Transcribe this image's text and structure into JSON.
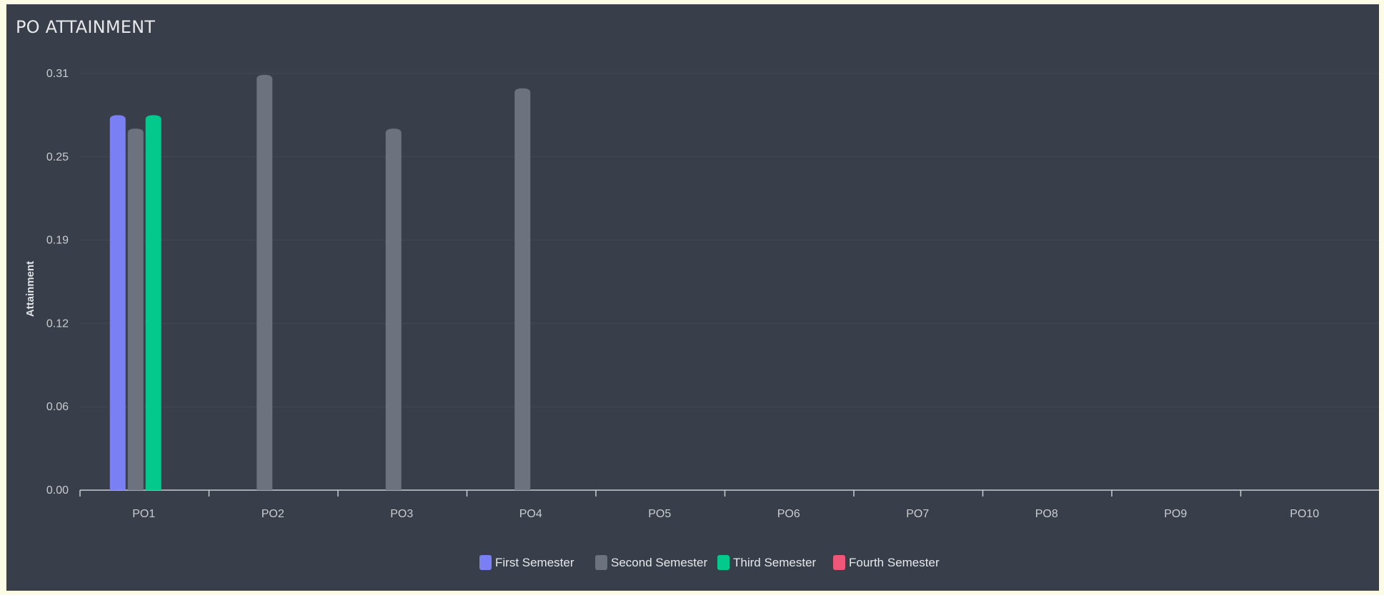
{
  "title": "PO ATTAINMENT",
  "colors": {
    "background": "#383f4a",
    "grid": "#414854",
    "axis": "#c9ccd1",
    "first": "#7a80f4",
    "second": "#6c727e",
    "third": "#03c98d",
    "fourth": "#f0567a"
  },
  "chart_data": {
    "type": "bar",
    "title": "PO ATTAINMENT",
    "xlabel": "",
    "ylabel": "Attainment",
    "ylim": [
      0,
      0.31
    ],
    "yticks": [
      "0.31",
      "0.25",
      "0.19",
      "0.12",
      "0.06",
      "0.00"
    ],
    "categories": [
      "PO1",
      "PO2",
      "PO3",
      "PO4",
      "PO5",
      "PO6",
      "PO7",
      "PO8",
      "PO9",
      "PO10"
    ],
    "series": [
      {
        "name": "First Semester",
        "color": "#7a80f4",
        "values": [
          0.279,
          null,
          null,
          null,
          null,
          null,
          null,
          null,
          null,
          null
        ]
      },
      {
        "name": "Second Semester",
        "color": "#6c727e",
        "values": [
          0.269,
          0.309,
          0.269,
          0.299,
          null,
          null,
          null,
          null,
          null,
          null
        ]
      },
      {
        "name": "Third Semester",
        "color": "#03c98d",
        "values": [
          0.279,
          null,
          null,
          null,
          null,
          null,
          null,
          null,
          null,
          null
        ]
      },
      {
        "name": "Fourth Semester",
        "color": "#f0567a",
        "values": [
          null,
          null,
          null,
          null,
          null,
          null,
          null,
          null,
          null,
          null
        ]
      }
    ],
    "grid": true,
    "legend_position": "bottom"
  }
}
